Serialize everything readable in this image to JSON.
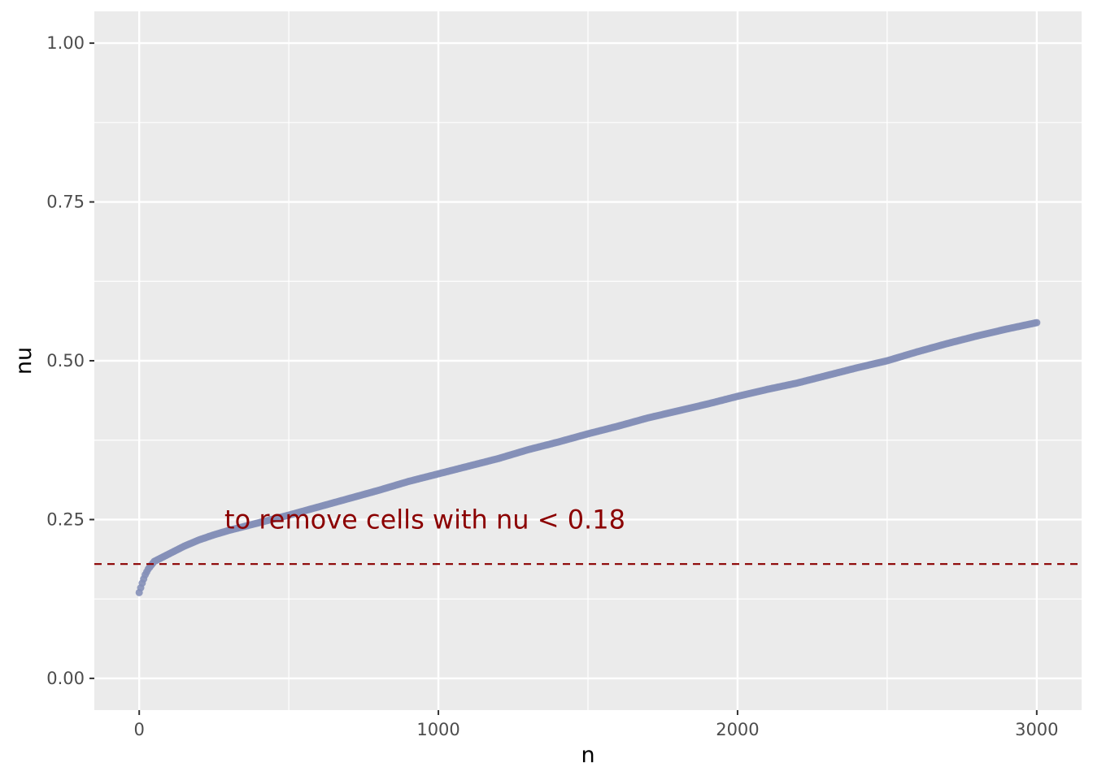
{
  "chart_data": {
    "type": "scatter",
    "title": "",
    "xlabel": "n",
    "ylabel": "nu",
    "xlim": [
      -150,
      3150
    ],
    "ylim": [
      -0.05,
      1.05
    ],
    "x_ticks": [
      0,
      1000,
      2000,
      3000
    ],
    "x_tick_labels": [
      "0",
      "1000",
      "2000",
      "3000"
    ],
    "y_ticks": [
      0.0,
      0.25,
      0.5,
      0.75,
      1.0
    ],
    "y_tick_labels": [
      "0.00",
      "0.25",
      "0.50",
      "0.75",
      "1.00"
    ],
    "grid": true,
    "legend": "none",
    "series": [
      {
        "points_color": "#8590b8",
        "x": [
          0,
          10,
          20,
          30,
          40,
          50,
          75,
          100,
          150,
          200,
          250,
          300,
          350,
          400,
          500,
          600,
          700,
          800,
          900,
          1000,
          1100,
          1200,
          1300,
          1400,
          1500,
          1600,
          1700,
          1800,
          1900,
          2000,
          2100,
          2200,
          2300,
          2400,
          2500,
          2600,
          2700,
          2800,
          2900,
          3000
        ],
        "y": [
          0.135,
          0.15,
          0.163,
          0.172,
          0.178,
          0.184,
          0.19,
          0.196,
          0.208,
          0.218,
          0.226,
          0.233,
          0.239,
          0.245,
          0.257,
          0.27,
          0.283,
          0.296,
          0.31,
          0.322,
          0.334,
          0.346,
          0.36,
          0.372,
          0.385,
          0.397,
          0.41,
          0.421,
          0.432,
          0.444,
          0.455,
          0.465,
          0.477,
          0.489,
          0.5,
          0.514,
          0.527,
          0.539,
          0.55,
          0.56
        ]
      }
    ],
    "hline": {
      "y": 0.18,
      "color": "#8b0000",
      "style": "dashed"
    },
    "annotation": {
      "text": "to remove cells with nu < 0.18",
      "x": 285,
      "y": 0.25,
      "color": "#8b0000"
    },
    "panel_background": "#ebebeb",
    "grid_color": "#ffffff"
  }
}
